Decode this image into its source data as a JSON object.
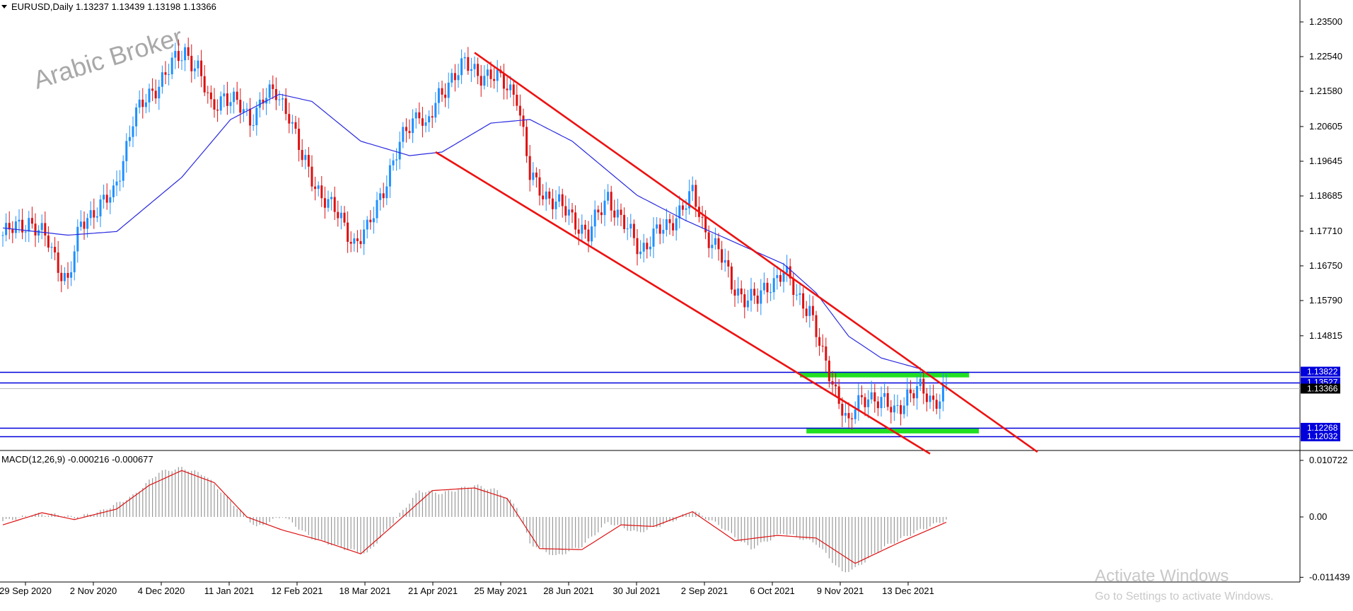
{
  "header": {
    "main_title": "EURUSD,Daily  1.13237 1.13439 1.13198 1.13366",
    "macd_title": "MACD(12,26,9) -0.000216 -0.000677"
  },
  "watermark": "Arabic Broker",
  "activation": {
    "title": "Activate Windows",
    "subtitle": "Go to Settings to activate Windows."
  },
  "colors": {
    "bull": "#1e90ff",
    "bear": "#dd1111",
    "ma": "#2a2ae0",
    "channel": "#ee1111",
    "level": "#0000dd",
    "zone": "#22e022",
    "macd_hist": "#9a9a9a",
    "macd_signal": "#dd1111"
  },
  "chart_data": {
    "type": "candlestick",
    "symbol": "EURUSD",
    "timeframe": "Daily",
    "ylim": [
      1.117,
      1.2395
    ],
    "y_ticks": [
      "1.23500",
      "1.22540",
      "1.21580",
      "1.20605",
      "1.19645",
      "1.18685",
      "1.17710",
      "1.16750",
      "1.15790",
      "1.14815"
    ],
    "x_tick_labels": [
      "29 Sep 2020",
      "2 Nov 2020",
      "4 Dec 2020",
      "11 Jan 2021",
      "12 Feb 2021",
      "18 Mar 2021",
      "21 Apr 2021",
      "25 May 2021",
      "28 Jun 2021",
      "30 Jul 2021",
      "2 Sep 2021",
      "6 Oct 2021",
      "9 Nov 2021",
      "13 Dec 2021"
    ],
    "price_path": [
      [
        0,
        1.176
      ],
      [
        8,
        1.18
      ],
      [
        14,
        1.174
      ],
      [
        18,
        1.166
      ],
      [
        20,
        1.163
      ],
      [
        24,
        1.179
      ],
      [
        28,
        1.183
      ],
      [
        34,
        1.187
      ],
      [
        40,
        1.208
      ],
      [
        46,
        1.216
      ],
      [
        52,
        1.223
      ],
      [
        56,
        1.227
      ],
      [
        60,
        1.222
      ],
      [
        64,
        1.211
      ],
      [
        68,
        1.215
      ],
      [
        72,
        1.212
      ],
      [
        76,
        1.208
      ],
      [
        80,
        1.214
      ],
      [
        84,
        1.215
      ],
      [
        88,
        1.21
      ],
      [
        92,
        1.197
      ],
      [
        96,
        1.19
      ],
      [
        100,
        1.185
      ],
      [
        104,
        1.18
      ],
      [
        108,
        1.174
      ],
      [
        112,
        1.177
      ],
      [
        116,
        1.187
      ],
      [
        120,
        1.196
      ],
      [
        124,
        1.205
      ],
      [
        128,
        1.211
      ],
      [
        130,
        1.205
      ],
      [
        134,
        1.214
      ],
      [
        138,
        1.22
      ],
      [
        142,
        1.223
      ],
      [
        146,
        1.221
      ],
      [
        150,
        1.22
      ],
      [
        154,
        1.218
      ],
      [
        158,
        1.215
      ],
      [
        162,
        1.192
      ],
      [
        166,
        1.188
      ],
      [
        170,
        1.185
      ],
      [
        176,
        1.18
      ],
      [
        180,
        1.176
      ],
      [
        186,
        1.187
      ],
      [
        190,
        1.18
      ],
      [
        196,
        1.172
      ],
      [
        200,
        1.176
      ],
      [
        204,
        1.178
      ],
      [
        208,
        1.183
      ],
      [
        212,
        1.187
      ],
      [
        216,
        1.177
      ],
      [
        220,
        1.172
      ],
      [
        224,
        1.162
      ],
      [
        228,
        1.159
      ],
      [
        232,
        1.158
      ],
      [
        236,
        1.163
      ],
      [
        240,
        1.166
      ],
      [
        244,
        1.159
      ],
      [
        248,
        1.156
      ],
      [
        252,
        1.142
      ],
      [
        256,
        1.133
      ],
      [
        258,
        1.129
      ],
      [
        260,
        1.123
      ],
      [
        262,
        1.128
      ],
      [
        266,
        1.132
      ],
      [
        270,
        1.13
      ],
      [
        274,
        1.127
      ],
      [
        278,
        1.132
      ],
      [
        282,
        1.133
      ],
      [
        286,
        1.13
      ],
      [
        290,
        1.1337
      ]
    ],
    "moving_average": [
      [
        0,
        1.178
      ],
      [
        20,
        1.176
      ],
      [
        35,
        1.177
      ],
      [
        55,
        1.192
      ],
      [
        70,
        1.208
      ],
      [
        85,
        1.215
      ],
      [
        95,
        1.213
      ],
      [
        110,
        1.202
      ],
      [
        125,
        1.198
      ],
      [
        135,
        1.199
      ],
      [
        150,
        1.207
      ],
      [
        162,
        1.208
      ],
      [
        175,
        1.202
      ],
      [
        195,
        1.187
      ],
      [
        210,
        1.18
      ],
      [
        225,
        1.174
      ],
      [
        240,
        1.168
      ],
      [
        250,
        1.16
      ],
      [
        260,
        1.148
      ],
      [
        270,
        1.142
      ],
      [
        282,
        1.139
      ]
    ],
    "channel_lines": [
      {
        "name": "upper",
        "from": [
          145,
          1.2265
        ],
        "to": [
          318,
          1.116
        ]
      },
      {
        "name": "lower",
        "from": [
          133,
          1.199
        ],
        "to": [
          285,
          1.1155
        ]
      }
    ],
    "horizontal_levels": [
      "1.13822",
      "1.13527",
      "1.12268",
      "1.12032"
    ],
    "current_price": "1.13366",
    "zones": [
      {
        "name": "resistance",
        "x_from": 245,
        "x_to": 297,
        "y_from": 1.137,
        "y_to": 1.1382
      },
      {
        "name": "support",
        "x_from": 247,
        "x_to": 300,
        "y_from": 1.1216,
        "y_to": 1.1227
      }
    ],
    "macd": {
      "ylim": [
        -0.0122,
        0.0122
      ],
      "y_ticks": [
        "0.010722",
        "0.00",
        "-0.011439"
      ],
      "histogram_path": [
        [
          0,
          -0.0008
        ],
        [
          10,
          0.0005
        ],
        [
          18,
          0.0004
        ],
        [
          22,
          -0.0002
        ],
        [
          30,
          0.001
        ],
        [
          40,
          0.004
        ],
        [
          48,
          0.0085
        ],
        [
          55,
          0.0093
        ],
        [
          62,
          0.008
        ],
        [
          70,
          0.003
        ],
        [
          78,
          -0.002
        ],
        [
          86,
          0.0002
        ],
        [
          95,
          -0.004
        ],
        [
          105,
          -0.006
        ],
        [
          112,
          -0.007
        ],
        [
          120,
          -0.001
        ],
        [
          128,
          0.005
        ],
        [
          135,
          0.0045
        ],
        [
          145,
          0.006
        ],
        [
          152,
          0.005
        ],
        [
          158,
          0.002
        ],
        [
          162,
          -0.005
        ],
        [
          170,
          -0.0075
        ],
        [
          178,
          -0.0055
        ],
        [
          186,
          -0.001
        ],
        [
          195,
          -0.003
        ],
        [
          205,
          -0.001
        ],
        [
          212,
          0.0012
        ],
        [
          220,
          -0.0015
        ],
        [
          230,
          -0.006
        ],
        [
          240,
          -0.003
        ],
        [
          250,
          -0.005
        ],
        [
          258,
          -0.0105
        ],
        [
          262,
          -0.0098
        ],
        [
          270,
          -0.006
        ],
        [
          280,
          -0.003
        ],
        [
          290,
          -0.0005
        ]
      ],
      "signal_path": [
        [
          0,
          -0.0015
        ],
        [
          12,
          0.0008
        ],
        [
          22,
          -0.0005
        ],
        [
          35,
          0.0015
        ],
        [
          45,
          0.006
        ],
        [
          55,
          0.0088
        ],
        [
          65,
          0.0065
        ],
        [
          75,
          0.0
        ],
        [
          86,
          -0.0025
        ],
        [
          98,
          -0.0045
        ],
        [
          110,
          -0.007
        ],
        [
          122,
          -0.0005
        ],
        [
          132,
          0.005
        ],
        [
          145,
          0.0055
        ],
        [
          155,
          0.0035
        ],
        [
          165,
          -0.006
        ],
        [
          178,
          -0.0062
        ],
        [
          190,
          -0.0015
        ],
        [
          200,
          -0.0018
        ],
        [
          212,
          0.001
        ],
        [
          225,
          -0.0045
        ],
        [
          238,
          -0.0035
        ],
        [
          250,
          -0.004
        ],
        [
          262,
          -0.0088
        ],
        [
          275,
          -0.005
        ],
        [
          290,
          -0.001
        ]
      ]
    }
  }
}
